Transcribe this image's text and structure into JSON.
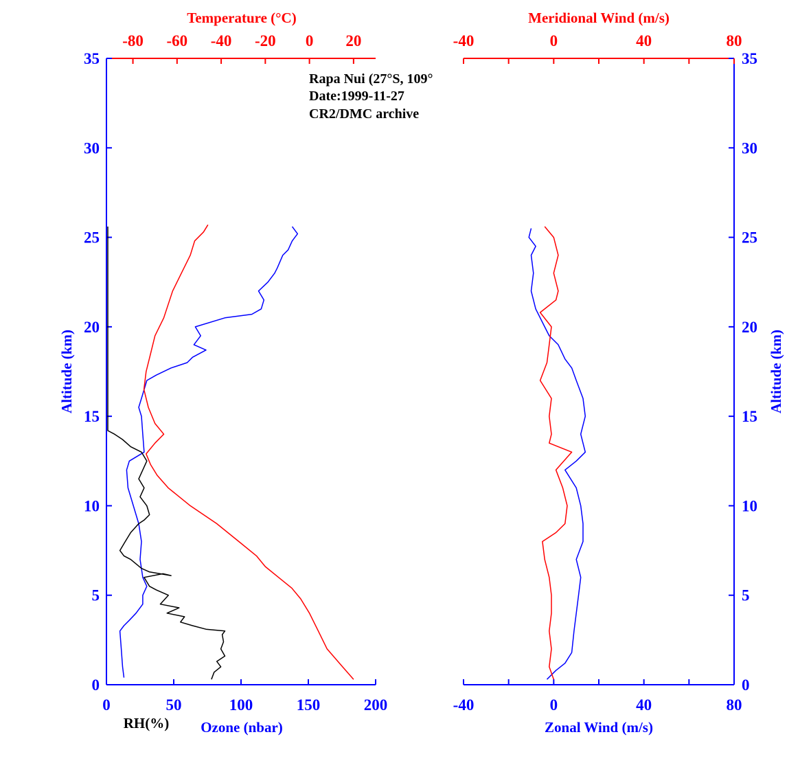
{
  "colors": {
    "blue": "#0000ff",
    "red": "#ff0000",
    "black": "#000000",
    "background": "#ffffff"
  },
  "annotation": {
    "line1": "Rapa Nui (27°S, 109°",
    "line2": "Date:1999-11-27",
    "line3": "CR2/DMC archive"
  },
  "chart_data": [
    {
      "type": "line",
      "panel": "left",
      "left_axis": {
        "label": "Altitude (km)",
        "range": [
          0,
          35
        ],
        "ticks": [
          "0",
          "5",
          "10",
          "15",
          "20",
          "25",
          "30",
          "35"
        ]
      },
      "bottom_axis": {
        "label": "Ozone (nbar)",
        "range": [
          0,
          200
        ],
        "ticks": [
          "0",
          "50",
          "100",
          "150",
          "200"
        ],
        "secondary_label": "RH(%)"
      },
      "top_axis": {
        "label": "Temperature (°C)",
        "range": [
          -92,
          30
        ],
        "ticks": [
          "-80",
          "-60",
          "-40",
          "-20",
          "0",
          "20"
        ],
        "tick_values": [
          -80,
          -60,
          -40,
          -20,
          0,
          20
        ]
      },
      "grid": false,
      "series": [
        {
          "name": "Ozone (nbar)",
          "color": "#0000ff",
          "axis": "bottom",
          "points": [
            [
              13,
              0.4
            ],
            [
              12,
              1
            ],
            [
              11,
              2
            ],
            [
              10,
              3
            ],
            [
              13,
              3.3
            ],
            [
              17,
              3.6
            ],
            [
              22,
              4
            ],
            [
              27,
              4.5
            ],
            [
              27,
              5
            ],
            [
              30,
              5.5
            ],
            [
              27,
              6
            ],
            [
              25,
              7
            ],
            [
              26,
              8
            ],
            [
              24,
              9
            ],
            [
              20,
              10
            ],
            [
              16,
              11
            ],
            [
              15,
              12
            ],
            [
              17,
              12.5
            ],
            [
              28,
              13
            ],
            [
              27,
              14
            ],
            [
              26,
              15
            ],
            [
              24,
              15.5
            ],
            [
              26,
              16
            ],
            [
              28,
              16.5
            ],
            [
              30,
              17
            ],
            [
              37,
              17.3
            ],
            [
              48,
              17.7
            ],
            [
              60,
              18
            ],
            [
              64,
              18.3
            ],
            [
              74,
              18.7
            ],
            [
              65,
              19
            ],
            [
              70,
              19.5
            ],
            [
              66,
              20
            ],
            [
              88,
              20.5
            ],
            [
              108,
              20.7
            ],
            [
              115,
              21
            ],
            [
              117,
              21.5
            ],
            [
              113,
              22
            ],
            [
              120,
              22.5
            ],
            [
              125,
              23
            ],
            [
              127,
              23.3
            ],
            [
              131,
              24
            ],
            [
              135,
              24.3
            ],
            [
              138,
              24.8
            ],
            [
              142,
              25.2
            ],
            [
              138,
              25.6
            ]
          ]
        },
        {
          "name": "RH(%)",
          "color": "#000000",
          "axis": "bottom",
          "points": [
            [
              78,
              0.3
            ],
            [
              80,
              0.7
            ],
            [
              85,
              1
            ],
            [
              82,
              1.3
            ],
            [
              88,
              1.6
            ],
            [
              85,
              2
            ],
            [
              87,
              2.4
            ],
            [
              86,
              2.8
            ],
            [
              88,
              3
            ],
            [
              74,
              3.1
            ],
            [
              64,
              3.3
            ],
            [
              55,
              3.5
            ],
            [
              58,
              3.8
            ],
            [
              45,
              4
            ],
            [
              54,
              4.3
            ],
            [
              40,
              4.5
            ],
            [
              46,
              5
            ],
            [
              37,
              5.3
            ],
            [
              32,
              5.5
            ],
            [
              28,
              6
            ],
            [
              42,
              6.2
            ],
            [
              48,
              6.1
            ],
            [
              32,
              6.3
            ],
            [
              26,
              6.5
            ],
            [
              18,
              7
            ],
            [
              13,
              7.2
            ],
            [
              10,
              7.5
            ],
            [
              14,
              8
            ],
            [
              18,
              8.5
            ],
            [
              24,
              9
            ],
            [
              28,
              9.2
            ],
            [
              32,
              9.5
            ],
            [
              30,
              10
            ],
            [
              25,
              10.5
            ],
            [
              28,
              11
            ],
            [
              24,
              11.5
            ],
            [
              27,
              12
            ],
            [
              30,
              12.5
            ],
            [
              26,
              13
            ],
            [
              18,
              13.3
            ],
            [
              12,
              13.7
            ],
            [
              6,
              14
            ],
            [
              1,
              14.2
            ],
            [
              1,
              25.6
            ]
          ]
        },
        {
          "name": "Temperature (°C)",
          "color": "#ff0000",
          "axis": "top",
          "points": [
            [
              20,
              0.3
            ],
            [
              15,
              1
            ],
            [
              8,
              2
            ],
            [
              4,
              3
            ],
            [
              0,
              4
            ],
            [
              -4,
              4.8
            ],
            [
              -8,
              5.4
            ],
            [
              -14,
              6
            ],
            [
              -20,
              6.6
            ],
            [
              -24,
              7.2
            ],
            [
              -32,
              8
            ],
            [
              -42,
              9
            ],
            [
              -54,
              10
            ],
            [
              -64,
              11
            ],
            [
              -69,
              11.7
            ],
            [
              -72,
              12.3
            ],
            [
              -74,
              12.9
            ],
            [
              -70,
              13.5
            ],
            [
              -66,
              14
            ],
            [
              -70,
              14.6
            ],
            [
              -73,
              15.5
            ],
            [
              -75,
              16.5
            ],
            [
              -74,
              17.5
            ],
            [
              -72,
              18.5
            ],
            [
              -70,
              19.5
            ],
            [
              -66,
              20.5
            ],
            [
              -62,
              22
            ],
            [
              -58,
              23
            ],
            [
              -54,
              24
            ],
            [
              -52,
              24.8
            ],
            [
              -48,
              25.3
            ],
            [
              -46,
              25.7
            ]
          ]
        }
      ]
    },
    {
      "type": "line",
      "panel": "right",
      "right_axis": {
        "label": "Altitude (km)",
        "range": [
          0,
          35
        ],
        "ticks": [
          "0",
          "5",
          "10",
          "15",
          "20",
          "25",
          "30",
          "35"
        ]
      },
      "bottom_axis": {
        "label": "Zonal Wind (m/s)",
        "range": [
          -40,
          80
        ],
        "ticks": [
          "-40",
          "0",
          "40",
          "80"
        ],
        "minor_tick_values": [
          -20,
          20,
          60
        ]
      },
      "top_axis": {
        "label": "Meridional Wind (m/s)",
        "range": [
          -40,
          80
        ],
        "ticks": [
          "-40",
          "0",
          "40",
          "80"
        ],
        "minor_tick_values": [
          -20,
          20,
          60
        ]
      },
      "grid": false,
      "series": [
        {
          "name": "Zonal Wind (m/s)",
          "color": "#0000ff",
          "axis": "bottom",
          "points": [
            [
              -3,
              0.3
            ],
            [
              1,
              0.8
            ],
            [
              5,
              1.2
            ],
            [
              8,
              1.8
            ],
            [
              9,
              3
            ],
            [
              10,
              4
            ],
            [
              11,
              5
            ],
            [
              12,
              6
            ],
            [
              10,
              7
            ],
            [
              13,
              8
            ],
            [
              13,
              9
            ],
            [
              12,
              10
            ],
            [
              10,
              11
            ],
            [
              5,
              12
            ],
            [
              10,
              12.5
            ],
            [
              14,
              13
            ],
            [
              12,
              14
            ],
            [
              14,
              15
            ],
            [
              13,
              16
            ],
            [
              10,
              17
            ],
            [
              8,
              17.7
            ],
            [
              5,
              18.2
            ],
            [
              2,
              19
            ],
            [
              -2,
              19.5
            ],
            [
              -4,
              20
            ],
            [
              -8,
              21
            ],
            [
              -10,
              22
            ],
            [
              -9,
              23
            ],
            [
              -10,
              24
            ],
            [
              -8,
              24.5
            ],
            [
              -11,
              25
            ],
            [
              -10,
              25.5
            ]
          ]
        },
        {
          "name": "Meridional Wind (m/s)",
          "color": "#ff0000",
          "axis": "top",
          "points": [
            [
              0,
              0.3
            ],
            [
              -2,
              1
            ],
            [
              -1,
              2
            ],
            [
              -2,
              3
            ],
            [
              -1,
              4
            ],
            [
              -1,
              5
            ],
            [
              -2,
              6
            ],
            [
              -4,
              7
            ],
            [
              -5,
              8
            ],
            [
              1,
              8.5
            ],
            [
              5,
              9
            ],
            [
              6,
              10
            ],
            [
              4,
              11
            ],
            [
              1,
              12
            ],
            [
              8,
              13
            ],
            [
              -2,
              13.5
            ],
            [
              -1,
              14
            ],
            [
              -2,
              15
            ],
            [
              -1,
              16
            ],
            [
              -6,
              17
            ],
            [
              -3,
              18
            ],
            [
              -2,
              19
            ],
            [
              -1,
              20
            ],
            [
              -6,
              20.8
            ],
            [
              1,
              21.5
            ],
            [
              2,
              22
            ],
            [
              0,
              23
            ],
            [
              2,
              24
            ],
            [
              0,
              25
            ],
            [
              -4,
              25.6
            ]
          ]
        }
      ]
    }
  ]
}
